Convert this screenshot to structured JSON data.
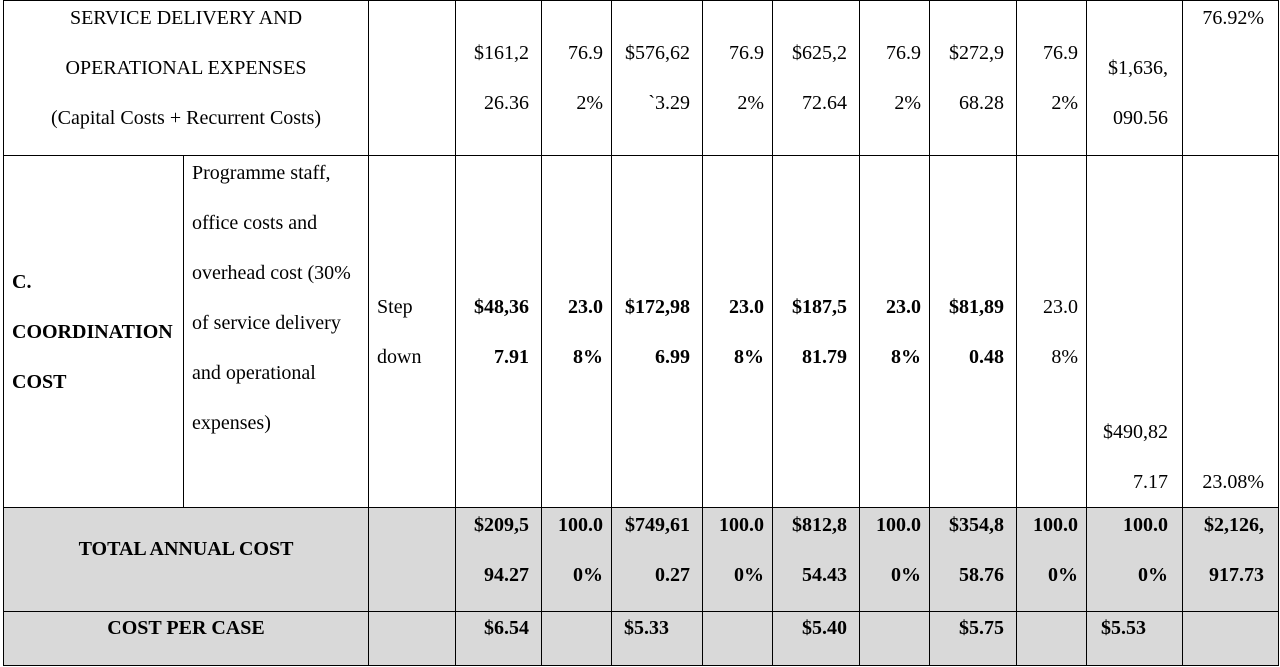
{
  "table": {
    "rows": [
      {
        "label": [
          "SERVICE DELIVERY AND",
          "OPERATIONAL EXPENSES",
          "(Capital Costs + Recurrent Costs)"
        ],
        "cells": [
          "$161,226.36",
          "76.92%",
          "$576,62`3.29",
          "76.92%",
          "$625,272.64",
          "76.92%",
          "$272,968.28",
          "76.92%",
          "$1,636,090.56",
          "76.92%"
        ]
      },
      {
        "label": "C. COORDINATION COST",
        "description": "Programme staff, office costs and overhead cost (30% of service delivery and operational expenses)",
        "method": "Step down",
        "cells": [
          "$48,367.91",
          "23.08%",
          "$172,986.99",
          "23.08%",
          "$187,581.79",
          "23.08%",
          "$81,890.48",
          "23.08%",
          "$490,827.17",
          "23.08%"
        ]
      },
      {
        "label": "TOTAL ANNUAL COST",
        "cells": [
          "$209,594.27",
          "100.00%",
          "$749,610.27",
          "100.00%",
          "$812,854.43",
          "100.00%",
          "$354,858.76",
          "100.00%",
          "100.00%",
          "$2,126,917.73"
        ]
      },
      {
        "label": "COST PER CASE",
        "cells": [
          "$6.54",
          "$5.33",
          "$5.40",
          "$5.75",
          "$5.53"
        ]
      }
    ]
  }
}
